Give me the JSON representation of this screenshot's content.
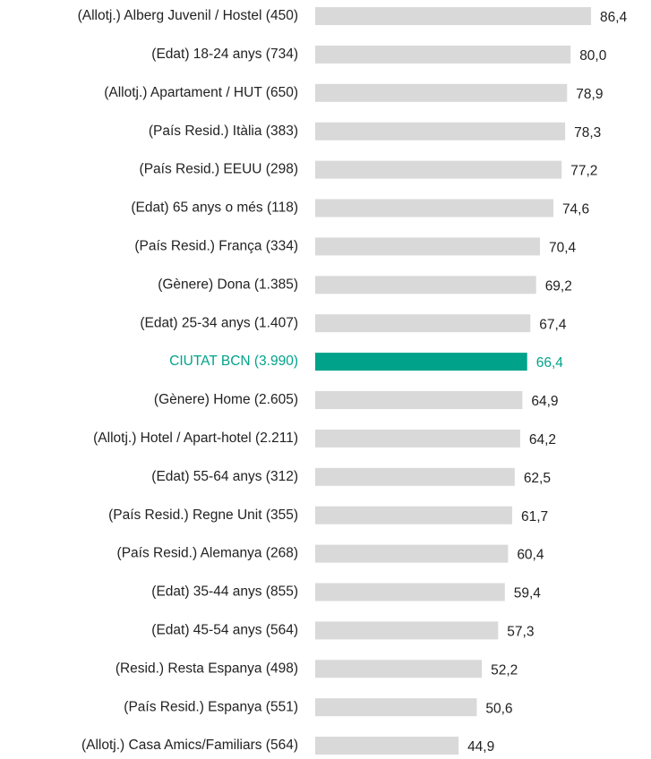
{
  "chart_data": {
    "type": "bar",
    "orientation": "horizontal",
    "categories": [
      "(Allotj.) Alberg Juvenil / Hostel  (450)",
      "(Edat) 18-24 anys (734)",
      "(Allotj.) Apartament / HUT (650)",
      "(País Resid.) Itàlia (383)",
      "(País Resid.) EEUU (298)",
      "(Edat) 65 anys o més (118)",
      "(País Resid.) França (334)",
      "(Gènere) Dona (1.385)",
      "(Edat) 25-34 anys  (1.407)",
      "CIUTAT BCN (3.990)",
      "(Gènere) Home (2.605)",
      "(Allotj.) Hotel / Apart-hotel (2.211)",
      "(Edat) 55-64 anys (312)",
      "(País Resid.) Regne Unit (355)",
      "(País Resid.) Alemanya (268)",
      "(Edat) 35-44 anys (855)",
      "(Edat) 45-54 anys (564)",
      "(Resid.) Resta Espanya (498)",
      "(País Resid.) Espanya (551)",
      "(Allotj.) Casa Amics/Familiars (564)"
    ],
    "values": [
      86.4,
      80.0,
      78.9,
      78.3,
      77.2,
      74.6,
      70.4,
      69.2,
      67.4,
      66.4,
      64.9,
      64.2,
      62.5,
      61.7,
      60.4,
      59.4,
      57.3,
      52.2,
      50.6,
      44.9
    ],
    "value_labels": [
      "86,4",
      "80,0",
      "78,9",
      "78,3",
      "77,2",
      "74,6",
      "70,4",
      "69,2",
      "67,4",
      "66,4",
      "64,9",
      "64,2",
      "62,5",
      "61,7",
      "60,4",
      "59,4",
      "57,3",
      "52,2",
      "50,6",
      "44,9"
    ],
    "bar_colors": [
      "#d9d9d9",
      "#d9d9d9",
      "#d9d9d9",
      "#d9d9d9",
      "#d9d9d9",
      "#d9d9d9",
      "#d9d9d9",
      "#d9d9d9",
      "#d9d9d9",
      "#00a38a",
      "#d9d9d9",
      "#d9d9d9",
      "#d9d9d9",
      "#d9d9d9",
      "#d9d9d9",
      "#d9d9d9",
      "#d9d9d9",
      "#d9d9d9",
      "#d9d9d9",
      "#d9d9d9"
    ],
    "text_colors": [
      "#222222",
      "#222222",
      "#222222",
      "#222222",
      "#222222",
      "#222222",
      "#222222",
      "#222222",
      "#222222",
      "#00a38a",
      "#222222",
      "#222222",
      "#222222",
      "#222222",
      "#222222",
      "#222222",
      "#222222",
      "#222222",
      "#222222",
      "#222222"
    ]
  }
}
